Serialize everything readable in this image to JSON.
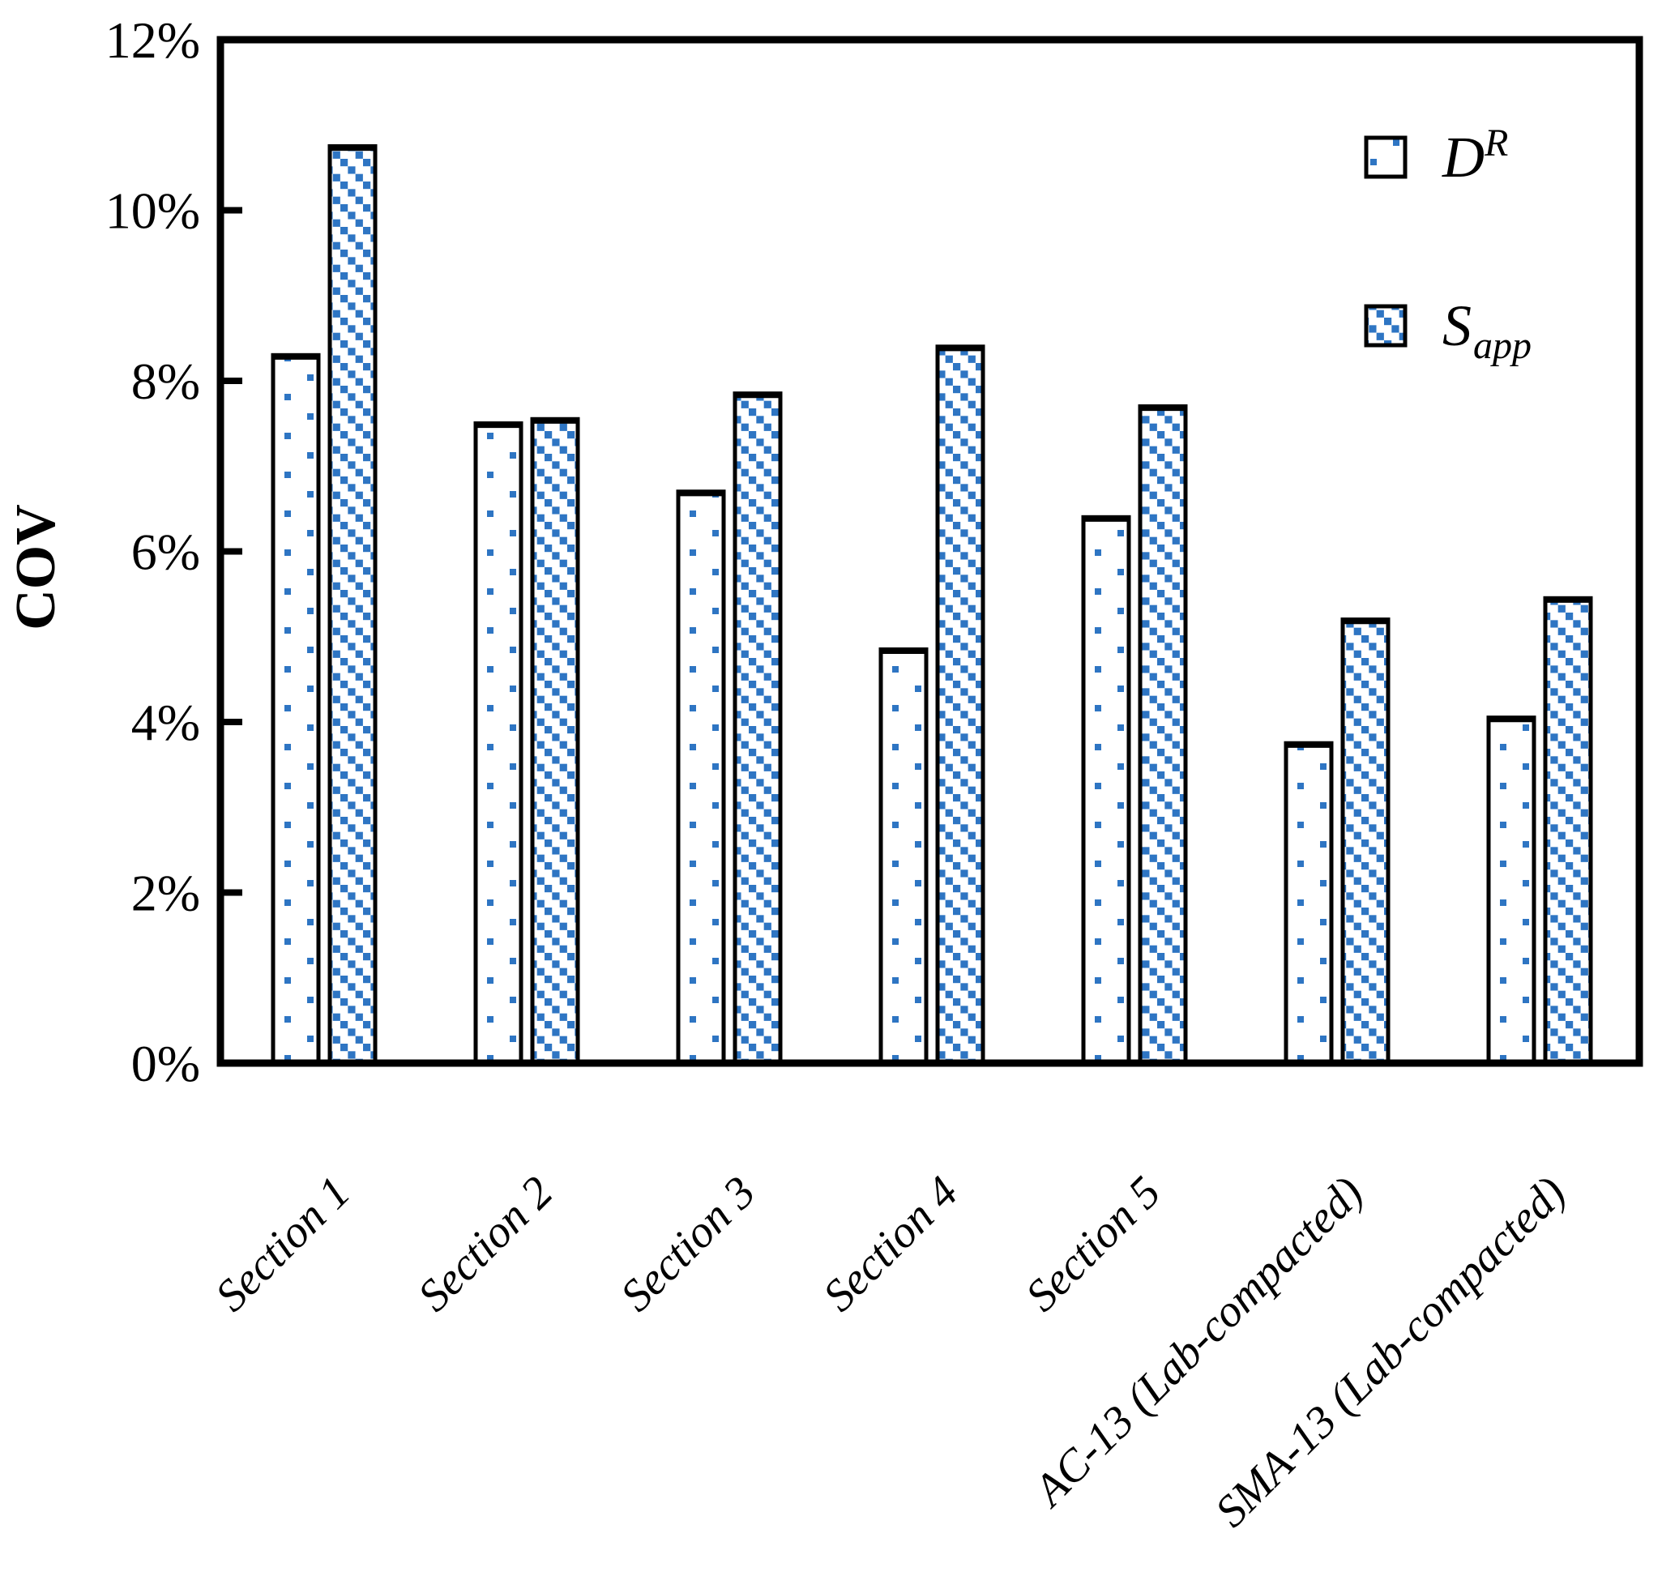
{
  "figure": {
    "background": "#FFFFFF",
    "description": "Grouped bar chart of COV values for two parameters across pavement sections"
  },
  "y_axis": {
    "title": "COV",
    "tick_labels": [
      "0%",
      "2%",
      "4%",
      "6%",
      "8%",
      "10%",
      "12%"
    ],
    "min": 0,
    "max": 12,
    "step": 2
  },
  "x_axis": {
    "title": ""
  },
  "legend": {
    "position": "upper-right",
    "dr_main": "D",
    "dr_sup": "R",
    "sapp_main": "S",
    "sapp_sub": "app"
  },
  "colors": {
    "pattern_blue": "#2E75C3",
    "axis": "#000000",
    "background": "#FFFFFF"
  },
  "chart_data": {
    "type": "bar",
    "title": "",
    "xlabel": "",
    "ylabel": "COV",
    "categories": [
      "Section 1",
      "Section 2",
      "Section 3",
      "Section 4",
      "Section 5",
      "AC-13 (Lab-compacted)",
      "SMA-13 (Lab-compacted)"
    ],
    "series": [
      {
        "name": "D^R",
        "pattern": "sparse-blue-square-dots",
        "values": [
          8.3,
          7.5,
          6.7,
          4.85,
          6.4,
          3.75,
          4.05
        ]
      },
      {
        "name": "S_app",
        "pattern": "blue-diagonal-square-hatch",
        "values": [
          10.75,
          7.55,
          7.85,
          8.4,
          7.7,
          5.2,
          5.45
        ]
      }
    ],
    "value_unit": "percent",
    "ylim": [
      0,
      12
    ],
    "ytick_labels": [
      "0%",
      "2%",
      "4%",
      "6%",
      "8%",
      "10%",
      "12%"
    ],
    "grid": false,
    "legend_position": "upper-right",
    "legend_entries": [
      "D^R",
      "S_app"
    ]
  }
}
